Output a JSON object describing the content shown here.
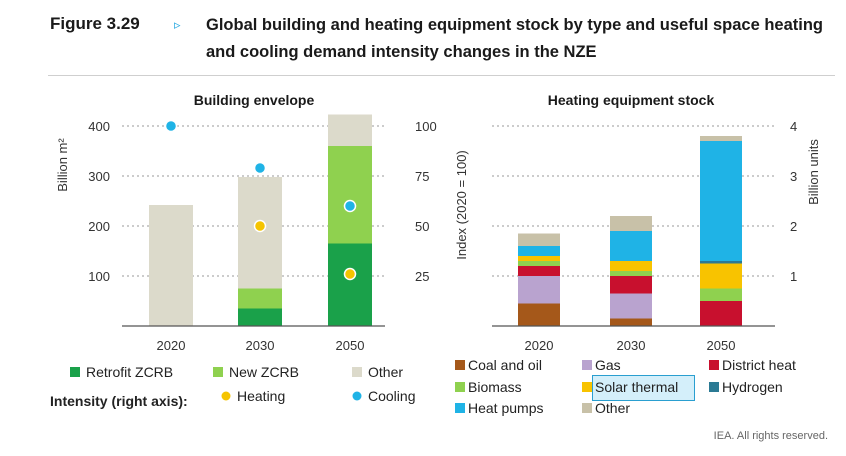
{
  "figure": {
    "label": "Figure 3.29",
    "arrow": "▹",
    "title": "Global building and heating equipment stock by type and useful space heating and cooling demand intensity changes in the NZE",
    "credit": "IEA. All rights reserved."
  },
  "colors": {
    "retrofit": "#1aa14a",
    "newzcrb": "#8fd14f",
    "other_env": "#dcdacb",
    "heating_dot": "#f5c400",
    "cooling_dot": "#1fb3e6",
    "coal_oil": "#a5581a",
    "gas": "#b9a3cf",
    "district": "#c8102e",
    "biomass": "#8fd14f",
    "solar": "#f8c300",
    "hydrogen": "#2b7a94",
    "heat_pumps": "#1fb3e6",
    "other_heat": "#c8c1a8"
  },
  "chart_data": [
    {
      "type": "bar",
      "title": "Building envelope",
      "ylabel": "Billion m²",
      "y2label": "Index (2020 = 100)",
      "ylim": [
        0,
        400
      ],
      "y2lim": [
        0,
        100
      ],
      "yticks": [
        100,
        200,
        300,
        400
      ],
      "y2ticks": [
        25,
        50,
        75,
        100
      ],
      "categories": [
        "2020",
        "2030",
        "2050"
      ],
      "series": [
        {
          "name": "Retrofit ZCRB",
          "values": [
            0,
            35,
            165
          ]
        },
        {
          "name": "New ZCRB",
          "values": [
            0,
            40,
            195
          ]
        },
        {
          "name": "Other",
          "values": [
            242,
            223,
            63
          ]
        }
      ],
      "intensity": [
        {
          "name": "Heating",
          "values": [
            null,
            50,
            26
          ]
        },
        {
          "name": "Cooling",
          "values": [
            100,
            79,
            60
          ]
        }
      ],
      "legend": {
        "intensity_label": "Intensity  (right axis):",
        "items": [
          "Retrofit ZCRB",
          "New ZCRB",
          "Other",
          "Heating",
          "Cooling"
        ]
      }
    },
    {
      "type": "bar",
      "title": "Heating equipment stock",
      "ylabel": "Billion units",
      "ylim": [
        0,
        4
      ],
      "yticks": [
        1,
        2,
        3,
        4
      ],
      "categories": [
        "2020",
        "2030",
        "2050"
      ],
      "series": [
        {
          "name": "Coal and oil",
          "values": [
            0.45,
            0.15,
            0.0
          ]
        },
        {
          "name": "Gas",
          "values": [
            0.55,
            0.5,
            0.0
          ]
        },
        {
          "name": "District heat",
          "values": [
            0.2,
            0.35,
            0.5
          ]
        },
        {
          "name": "Biomass",
          "values": [
            0.1,
            0.1,
            0.25
          ]
        },
        {
          "name": "Solar thermal",
          "values": [
            0.1,
            0.2,
            0.5
          ]
        },
        {
          "name": "Hydrogen",
          "values": [
            0.0,
            0.0,
            0.05
          ]
        },
        {
          "name": "Heat pumps",
          "values": [
            0.2,
            0.6,
            2.4
          ]
        },
        {
          "name": "Other",
          "values": [
            0.25,
            0.3,
            0.1
          ]
        }
      ],
      "legend": [
        "Coal and oil",
        "Gas",
        "District heat",
        "Biomass",
        "Solar thermal",
        "Hydrogen",
        "Heat pumps",
        "Other"
      ]
    }
  ]
}
